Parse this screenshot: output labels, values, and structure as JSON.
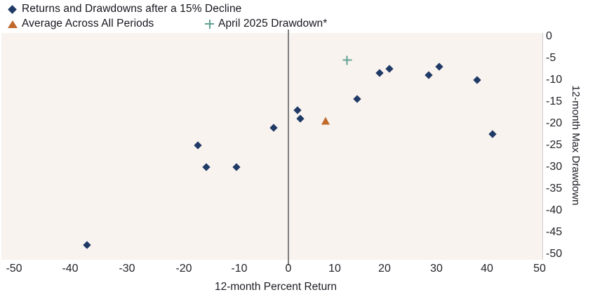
{
  "chart_data": {
    "type": "scatter",
    "title": "",
    "xlabel": "12-month Percent Return",
    "ylabel": "12-month Max Drawdown",
    "xlim": [
      -50,
      50
    ],
    "ylim": [
      -50,
      0
    ],
    "x_ticks": [
      -50,
      -40,
      -30,
      -20,
      -10,
      0,
      10,
      20,
      30,
      40,
      50
    ],
    "y_ticks": [
      0,
      -5,
      -10,
      -15,
      -20,
      -25,
      -30,
      -35,
      -40,
      -45,
      -50
    ],
    "grid": false,
    "zero_line_x": 0,
    "legend_position": "top-left",
    "series": [
      {
        "name": "Returns and Drawdowns after a 15% Decline",
        "marker": "diamond",
        "color": "#203a66",
        "points": [
          [
            -37,
            -48
          ],
          [
            -17.5,
            -25
          ],
          [
            -16,
            -30
          ],
          [
            -10.5,
            -30
          ],
          [
            -3,
            -21
          ],
          [
            2,
            -17
          ],
          [
            2.5,
            -19
          ],
          [
            14.5,
            -14.5
          ],
          [
            19,
            -8.5
          ],
          [
            21,
            -7.5
          ],
          [
            28.5,
            -9
          ],
          [
            30.5,
            -7
          ],
          [
            38,
            -10
          ],
          [
            41,
            -22.5
          ]
        ]
      },
      {
        "name": "Average Across All Periods",
        "marker": "triangle",
        "color": "#c0692a",
        "points": [
          [
            8,
            -19.5
          ]
        ]
      },
      {
        "name": "April 2025 Drawdown*",
        "marker": "plus",
        "color": "#5fa091",
        "points": [
          [
            12.5,
            -5.5
          ]
        ]
      }
    ]
  },
  "colors": {
    "plot_background": "#f9f3f0",
    "zero_line": "#7d7d7d",
    "text": "#17171f"
  }
}
